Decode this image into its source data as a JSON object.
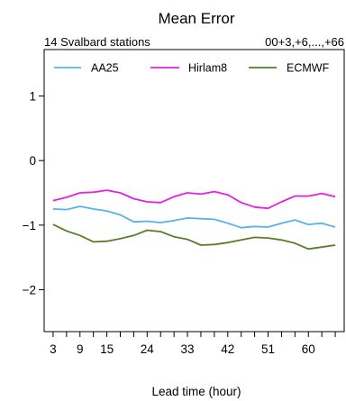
{
  "chart_data": {
    "type": "line",
    "title": "Mean Error",
    "subtitle_left": "14 Svalbard stations",
    "subtitle_right": "00+3,+6,...,+66",
    "xlabel": "Lead time (hour)",
    "ylabel": "",
    "xlim": [
      1,
      68
    ],
    "ylim": [
      -2.65,
      1.72
    ],
    "xticks": [
      3,
      6,
      9,
      12,
      15,
      18,
      21,
      24,
      27,
      30,
      33,
      36,
      39,
      42,
      45,
      48,
      51,
      54,
      57,
      60,
      63,
      66
    ],
    "xtick_labels": [
      {
        "x": 3,
        "label": "3"
      },
      {
        "x": 9,
        "label": "9"
      },
      {
        "x": 15,
        "label": "15"
      },
      {
        "x": 24,
        "label": "24"
      },
      {
        "x": 33,
        "label": "33"
      },
      {
        "x": 42,
        "label": "42"
      },
      {
        "x": 51,
        "label": "51"
      },
      {
        "x": 60,
        "label": "60"
      }
    ],
    "yticks": [
      {
        "y": 1,
        "label": "1"
      },
      {
        "y": 0,
        "label": "0"
      },
      {
        "y": -1,
        "label": "−1"
      },
      {
        "y": -2,
        "label": "−2"
      }
    ],
    "grid": false,
    "legend_position": "top",
    "x": [
      3,
      6,
      9,
      12,
      15,
      18,
      21,
      24,
      27,
      30,
      33,
      36,
      39,
      42,
      45,
      48,
      51,
      54,
      57,
      60,
      63,
      66
    ],
    "series": [
      {
        "name": "AA25",
        "color": "#56b4e9",
        "values": [
          -0.75,
          -0.76,
          -0.71,
          -0.75,
          -0.78,
          -0.84,
          -0.95,
          -0.94,
          -0.96,
          -0.93,
          -0.89,
          -0.9,
          -0.91,
          -0.97,
          -1.04,
          -1.02,
          -1.03,
          -0.97,
          -0.92,
          -0.99,
          -0.97,
          -1.03
        ]
      },
      {
        "name": "Hirlam8",
        "color": "#e61ee6",
        "values": [
          -0.62,
          -0.57,
          -0.5,
          -0.49,
          -0.46,
          -0.5,
          -0.59,
          -0.64,
          -0.65,
          -0.56,
          -0.5,
          -0.52,
          -0.48,
          -0.53,
          -0.65,
          -0.72,
          -0.74,
          -0.64,
          -0.55,
          -0.55,
          -0.51,
          -0.56
        ]
      },
      {
        "name": "ECMWF",
        "color": "#5a7d28",
        "values": [
          -0.99,
          -1.09,
          -1.16,
          -1.26,
          -1.25,
          -1.21,
          -1.16,
          -1.08,
          -1.1,
          -1.18,
          -1.22,
          -1.31,
          -1.3,
          -1.27,
          -1.23,
          -1.19,
          -1.2,
          -1.23,
          -1.28,
          -1.37,
          -1.34,
          -1.31
        ]
      }
    ]
  }
}
